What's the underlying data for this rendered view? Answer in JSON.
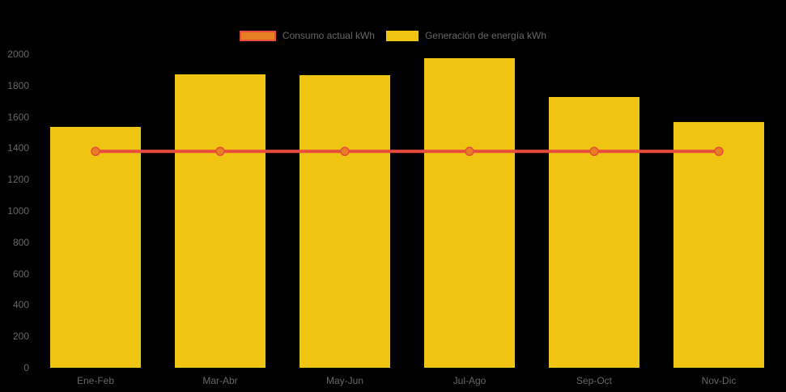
{
  "background": "#000000",
  "colors": {
    "bar_fill": "#F0C412",
    "line_stroke": "#E74C3C",
    "marker_fill": "#E67E22",
    "marker_stroke": "#E74C3C",
    "axis_text": "#666666",
    "legend_text": "#666666"
  },
  "legend": {
    "items": [
      {
        "label": "Consumo actual kWh",
        "swatch_fill": "#E67E22",
        "swatch_border": "#E74C3C"
      },
      {
        "label": "Generación de energía kWh",
        "swatch_fill": "#F0C412",
        "swatch_border": "#F0C412"
      }
    ]
  },
  "chart_data": {
    "type": "bar",
    "title": "",
    "categories": [
      "Ene-Feb",
      "Mar-Abr",
      "May-Jun",
      "Jul-Ago",
      "Sep-Oct",
      "Nov-Dic"
    ],
    "series": [
      {
        "name": "Generación de energía kWh",
        "type": "bar",
        "color": "#F0C412",
        "values": [
          1535,
          1870,
          1865,
          1975,
          1725,
          1565
        ]
      },
      {
        "name": "Consumo actual kWh",
        "type": "line",
        "color": "#E74C3C",
        "values": [
          1380,
          1380,
          1380,
          1380,
          1380,
          1380
        ]
      }
    ],
    "xlabel": "",
    "ylabel": "",
    "ylim": [
      0,
      2000
    ],
    "y_tick_step": 200,
    "y_tick_labels": [
      "0",
      "200",
      "400",
      "600",
      "800",
      "1000",
      "1200",
      "1400",
      "1600",
      "1800",
      "2000"
    ],
    "grid": false,
    "legend_position": "top"
  }
}
